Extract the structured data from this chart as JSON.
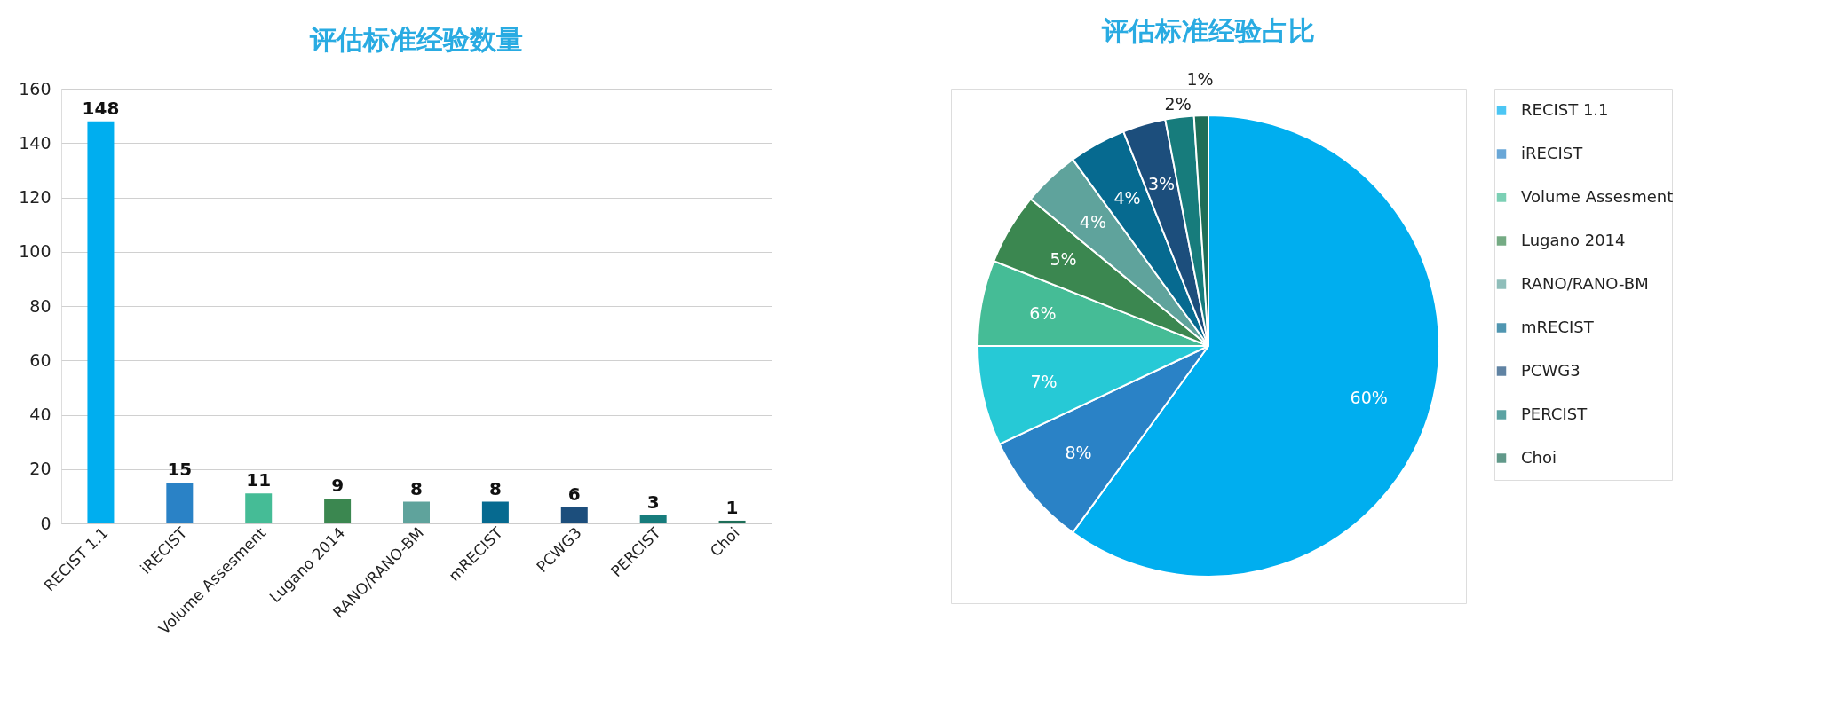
{
  "chart_data": [
    {
      "type": "bar",
      "title": "评估标准经验数量",
      "categories": [
        "RECIST 1.1",
        "iRECIST",
        "Volume Assesment",
        "Lugano 2014",
        "RANO/RANO-BM",
        "mRECIST",
        "PCWG3",
        "PERCIST",
        "Choi"
      ],
      "values": [
        148,
        15,
        11,
        9,
        8,
        8,
        6,
        3,
        1
      ],
      "colors": [
        "#00aeef",
        "#2a82c6",
        "#45bc96",
        "#3b8750",
        "#5fa39c",
        "#066a90",
        "#1c4e7c",
        "#177c7c",
        "#1e6e58"
      ],
      "ylim": [
        0,
        160
      ],
      "yticks": [
        0,
        20,
        40,
        60,
        80,
        100,
        120,
        140,
        160
      ],
      "grid": "y",
      "data_labels": true
    },
    {
      "type": "pie",
      "title": "评估标准经验占比",
      "categories": [
        "RECIST 1.1",
        "iRECIST",
        null,
        "Volume Assesment",
        "Lugano 2014",
        "RANO/RANO-BM",
        "mRECIST",
        "PCWG3",
        "PERCIST",
        "Choi"
      ],
      "values": [
        60,
        8,
        7,
        6,
        5,
        4,
        4,
        3,
        2,
        1
      ],
      "colors": [
        "#00aeef",
        "#2a82c6",
        "#26c9d6",
        "#45bc96",
        "#3b8750",
        "#5fa39c",
        "#066a90",
        "#1c4e7c",
        "#177c7c",
        "#1e6e58"
      ],
      "value_labels": [
        "60%",
        "8%",
        "7%",
        "6%",
        "5%",
        "4%",
        "4%",
        "3%",
        "2%",
        "1%"
      ],
      "legend": "right"
    }
  ]
}
